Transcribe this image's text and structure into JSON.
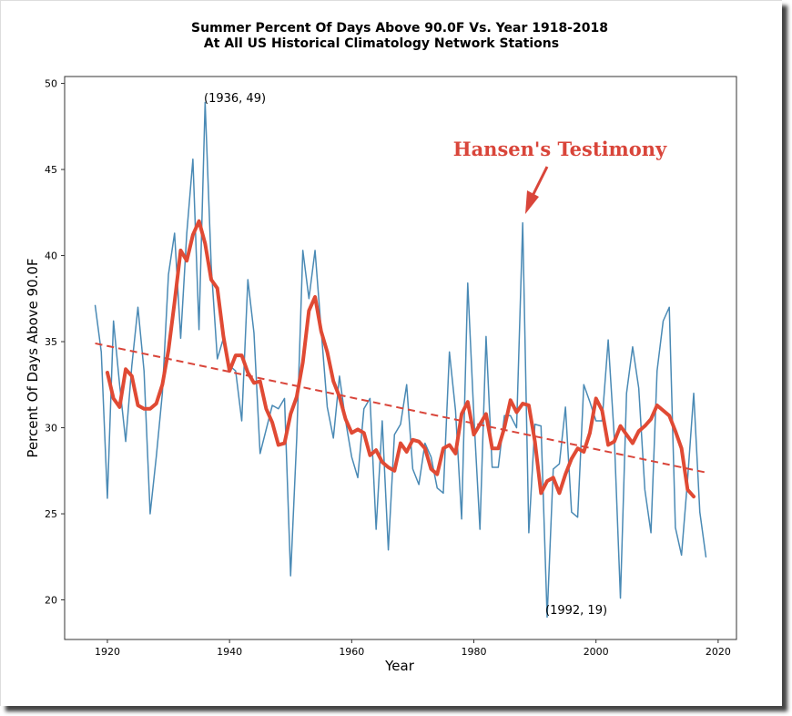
{
  "chart_data": {
    "type": "line",
    "title": [
      "Summer Percent Of Days Above 90.0F Vs. Year 1918-2018",
      "At All US Historical Climatology Network Stations"
    ],
    "x_label": "Year",
    "y_label": "Percent Of Days Above 90.0F",
    "xlim": [
      1913,
      2023
    ],
    "ylim": [
      17.7,
      50.4
    ],
    "xticks": [
      1920,
      1940,
      1960,
      1980,
      2000,
      2020
    ],
    "yticks": [
      20,
      25,
      30,
      35,
      40,
      45,
      50
    ],
    "annotations": [
      "(1936, 49)",
      "(1992, 19)",
      "Hansen's Testimony"
    ],
    "series": [
      {
        "color": "#4a8ab5",
        "linewidth": 1.5,
        "x": [
          1918,
          1919,
          1920,
          1921,
          1922,
          1923,
          1924,
          1925,
          1926,
          1927,
          1928,
          1929,
          1930,
          1931,
          1932,
          1933,
          1934,
          1935,
          1936,
          1937,
          1938,
          1939,
          1940,
          1941,
          1942,
          1943,
          1944,
          1945,
          1946,
          1947,
          1948,
          1949,
          1950,
          1951,
          1952,
          1953,
          1954,
          1955,
          1956,
          1957,
          1958,
          1959,
          1960,
          1961,
          1962,
          1963,
          1964,
          1965,
          1966,
          1967,
          1968,
          1969,
          1970,
          1971,
          1972,
          1973,
          1974,
          1975,
          1976,
          1977,
          1978,
          1979,
          1980,
          1981,
          1982,
          1983,
          1984,
          1985,
          1986,
          1987,
          1988,
          1989,
          1990,
          1991,
          1992,
          1993,
          1994,
          1995,
          1996,
          1997,
          1998,
          1999,
          2000,
          2001,
          2002,
          2003,
          2004,
          2005,
          2006,
          2007,
          2008,
          2009,
          2010,
          2011,
          2012,
          2013,
          2014,
          2015,
          2016,
          2017,
          2018
        ],
        "values": [
          37.1,
          34.4,
          25.9,
          36.2,
          32.5,
          29.2,
          33.6,
          37.0,
          33.3,
          25.0,
          28.3,
          32.0,
          38.9,
          41.3,
          35.2,
          41.3,
          45.6,
          35.7,
          48.9,
          39.4,
          34.0,
          35.2,
          33.6,
          33.3,
          30.4,
          38.6,
          35.5,
          28.5,
          29.9,
          31.3,
          31.1,
          31.7,
          21.4,
          29.4,
          40.3,
          37.5,
          40.3,
          35.7,
          31.2,
          29.4,
          33.0,
          30.4,
          28.3,
          27.1,
          31.1,
          31.7,
          24.1,
          30.4,
          22.9,
          29.6,
          30.2,
          32.5,
          27.6,
          26.7,
          29.1,
          28.3,
          26.5,
          26.2,
          34.4,
          31.0,
          24.7,
          38.4,
          30.7,
          24.1,
          35.3,
          27.7,
          27.7,
          30.7,
          30.7,
          30.0,
          41.9,
          23.9,
          30.2,
          30.1,
          19.0,
          27.6,
          27.9,
          31.2,
          25.1,
          24.8,
          32.5,
          31.5,
          30.4,
          30.4,
          35.1,
          29.4,
          20.1,
          32.0,
          34.7,
          32.3,
          26.4,
          23.9,
          33.3,
          36.2,
          37.0,
          24.2,
          22.6,
          27.0,
          32.0,
          25.1,
          22.5
        ]
      },
      {
        "color": "#e04a34",
        "linewidth": 4,
        "x": [
          1920,
          1921,
          1922,
          1923,
          1924,
          1925,
          1926,
          1927,
          1928,
          1929,
          1930,
          1931,
          1932,
          1933,
          1934,
          1935,
          1936,
          1937,
          1938,
          1939,
          1940,
          1941,
          1942,
          1943,
          1944,
          1945,
          1946,
          1947,
          1948,
          1949,
          1950,
          1951,
          1952,
          1953,
          1954,
          1955,
          1956,
          1957,
          1958,
          1959,
          1960,
          1961,
          1962,
          1963,
          1964,
          1965,
          1966,
          1967,
          1968,
          1969,
          1970,
          1971,
          1972,
          1973,
          1974,
          1975,
          1976,
          1977,
          1978,
          1979,
          1980,
          1981,
          1982,
          1983,
          1984,
          1985,
          1986,
          1987,
          1988,
          1989,
          1990,
          1991,
          1992,
          1993,
          1994,
          1995,
          1996,
          1997,
          1998,
          1999,
          2000,
          2001,
          2002,
          2003,
          2004,
          2005,
          2006,
          2007,
          2008,
          2009,
          2010,
          2011,
          2012,
          2013,
          2014,
          2015,
          2016
        ],
        "values": [
          33.2,
          31.7,
          31.2,
          33.4,
          33.0,
          31.3,
          31.1,
          31.1,
          31.4,
          32.5,
          34.5,
          37.3,
          40.3,
          39.7,
          41.2,
          42.0,
          40.7,
          38.6,
          38.1,
          35.3,
          33.3,
          34.2,
          34.2,
          33.2,
          32.6,
          32.7,
          31.1,
          30.3,
          29.0,
          29.1,
          30.8,
          31.8,
          33.8,
          36.8,
          37.6,
          35.6,
          34.4,
          32.7,
          31.8,
          30.5,
          29.7,
          29.9,
          29.7,
          28.4,
          28.7,
          28.0,
          27.7,
          27.5,
          29.1,
          28.6,
          29.3,
          29.2,
          28.8,
          27.6,
          27.3,
          28.8,
          29.0,
          28.5,
          30.8,
          31.5,
          29.6,
          30.2,
          30.8,
          28.8,
          28.8,
          30.0,
          31.6,
          30.9,
          31.4,
          31.3,
          29.2,
          26.2,
          26.9,
          27.1,
          26.2,
          27.3,
          28.2,
          28.8,
          28.6,
          29.7,
          31.7,
          31.0,
          29.0,
          29.2,
          30.1,
          29.6,
          29.1,
          29.8,
          30.1,
          30.5,
          31.3,
          31.0,
          30.7,
          29.8,
          28.8,
          26.4,
          26.0
        ]
      },
      {
        "color": "#d9453a",
        "linewidth": 2,
        "linestyle": "dashed",
        "x": [
          1918,
          2018
        ],
        "values": [
          34.9,
          27.4
        ]
      }
    ]
  }
}
